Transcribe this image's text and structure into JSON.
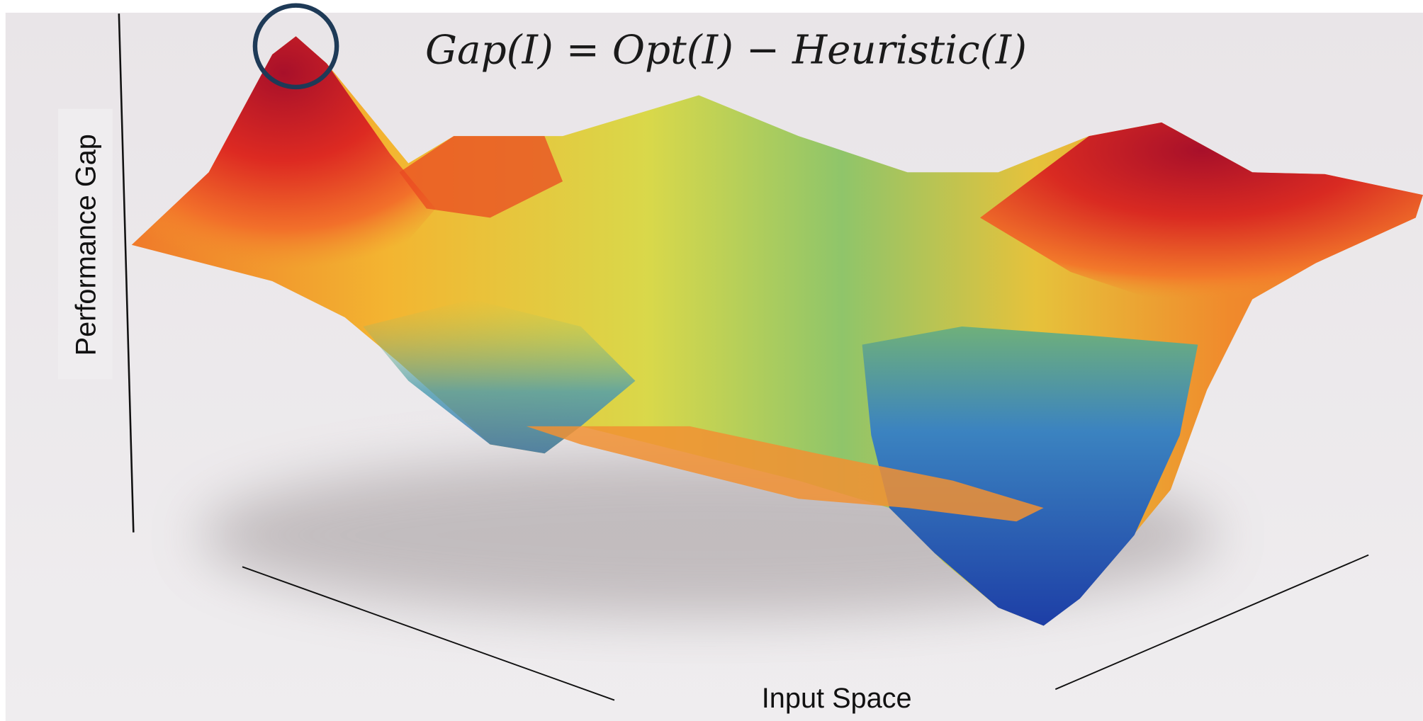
{
  "equation": "Gap(I) = Opt(I) − Heuristic(I)",
  "axes": {
    "vertical": "Performance Gap",
    "horizontal": "Input Space"
  }
}
